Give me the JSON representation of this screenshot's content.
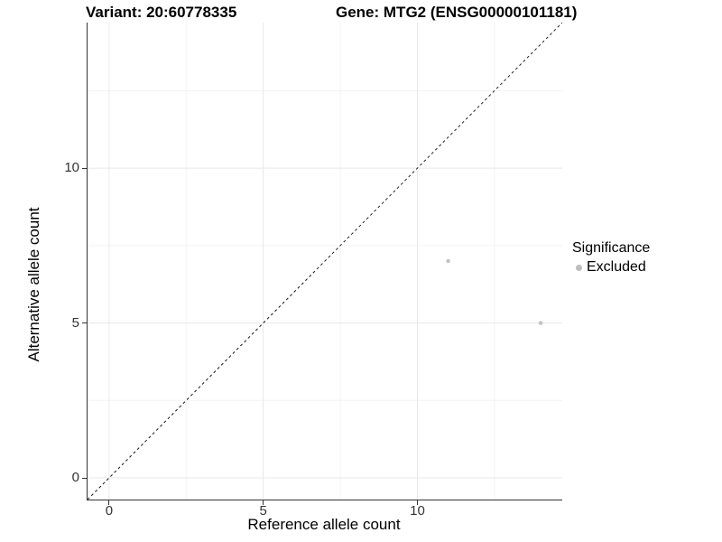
{
  "titles": {
    "variant": "Variant: 20:60778335",
    "gene": "Gene: MTG2 (ENSG00000101181)"
  },
  "chart_data": {
    "type": "scatter",
    "title": "Variant: 20:60778335 / Gene: MTG2 (ENSG00000101181)",
    "xlabel": "Reference allele count",
    "ylabel": "Alternative allele count",
    "points": [
      {
        "x": 11,
        "y": 7,
        "significance": "Excluded"
      },
      {
        "x": 14,
        "y": 5,
        "significance": "Excluded"
      }
    ],
    "x_ticks": [
      0,
      5,
      10
    ],
    "y_ticks": [
      0,
      5,
      10
    ],
    "x_minor_ticks": [
      2.5,
      7.5,
      12.5
    ],
    "y_minor_ticks": [
      2.5,
      7.5,
      12.5
    ],
    "xlim": [
      -0.7,
      14.7
    ],
    "ylim": [
      -0.7,
      14.7
    ],
    "grid": true,
    "identity_line": {
      "type": "abline",
      "slope": 1,
      "intercept": 0,
      "style": "dashed",
      "color": "#1a1a1a"
    },
    "legend": {
      "title": "Significance",
      "position": "right",
      "items": [
        {
          "label": "Excluded",
          "color": "#bdbdbd"
        }
      ]
    },
    "colors": {
      "point": "#c4c4c4",
      "major_grid": "#e8e8e8",
      "minor_grid": "#f3f3f3",
      "axis_line": "#333333",
      "tick_label": "#333333"
    }
  }
}
